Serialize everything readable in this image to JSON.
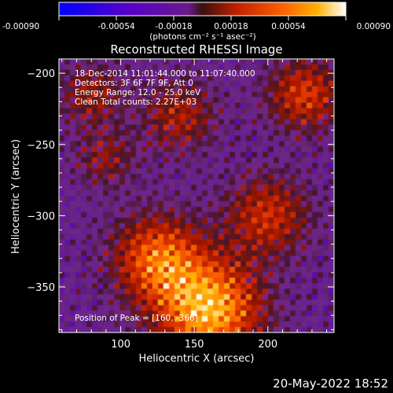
{
  "chart_data": {
    "type": "heatmap",
    "title": "Reconstructed RHESSI Image",
    "xlabel": "Heliocentric X (arcsec)",
    "ylabel": "Heliocentric Y (arcsec)",
    "xlim": [
      58,
      245
    ],
    "ylim": [
      -382,
      -190
    ],
    "x_ticks": [
      100,
      150,
      200
    ],
    "y_ticks": [
      -200,
      -250,
      -300,
      -350
    ],
    "colorbar": {
      "range": [
        -0.0009,
        0.0009
      ],
      "tick_values": [
        -0.0009,
        -0.00054,
        -0.00018,
        0.00018,
        0.00054,
        0.0009
      ],
      "tick_labels": [
        "-0.00090",
        "-0.00054",
        "-0.00018",
        "0.00018",
        "0.00054",
        "0.00090"
      ],
      "units_label": "(photons cm⁻² s⁻¹ asec⁻²)",
      "colormap": [
        "#0000ff",
        "#5a00c8",
        "#6a1a8a",
        "#7a2030",
        "#c02000",
        "#ff6000",
        "#ffb000",
        "#ffffff"
      ]
    },
    "annotations": [
      "18-Dec-2014 11:01:44.000 to 11:07:40.000",
      "Detectors: 3F 6F 7F 9F, Att 0",
      "Energy Range: 12.0 - 25.0 keV",
      "Clean     Total counts: 2.27E+03"
    ],
    "peak_label": "Position of Peak = [160, -366]",
    "peak_position": [
      160,
      -366
    ]
  },
  "footer": {
    "timestamp": "20-May-2022 18:52"
  }
}
